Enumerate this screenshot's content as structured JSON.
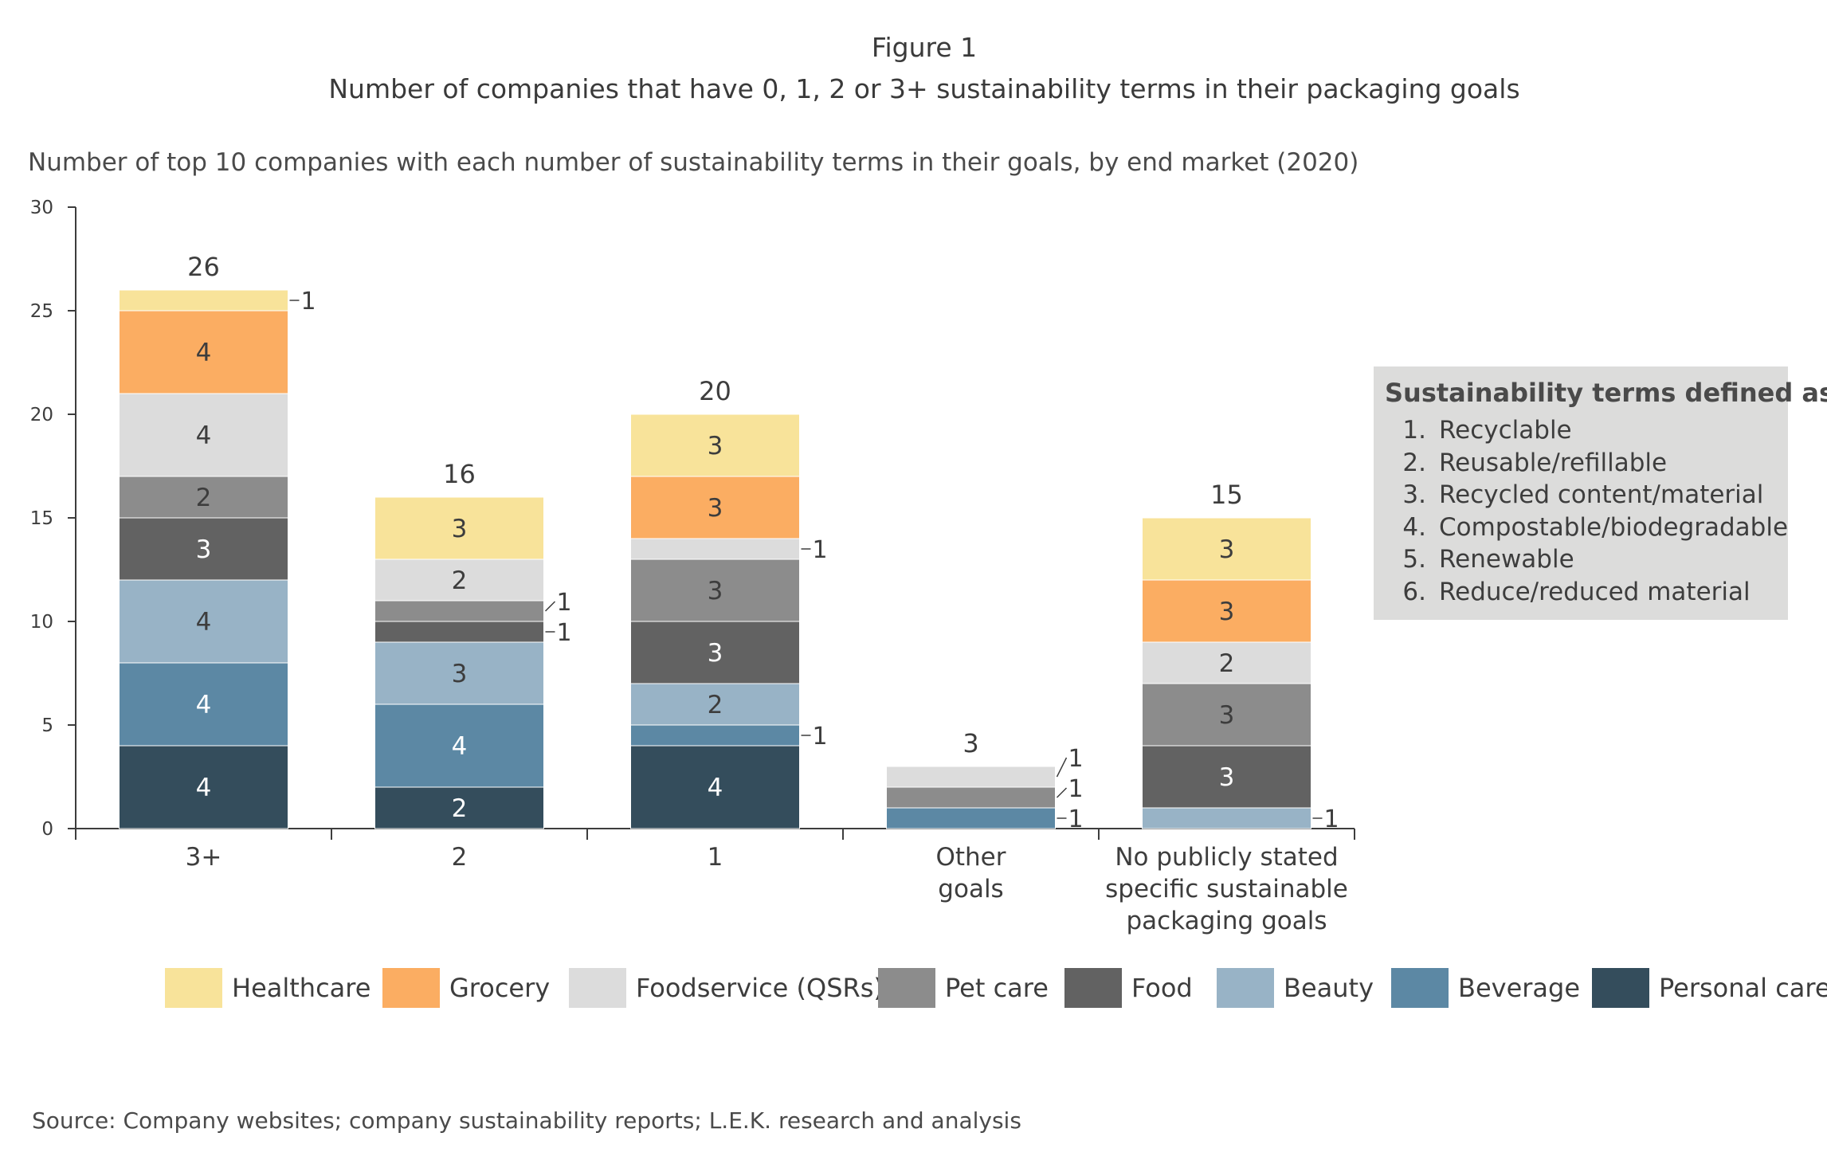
{
  "figure_label": "Figure 1",
  "title": "Number of companies that have 0, 1, 2 or 3+ sustainability terms in their packaging goals",
  "source": "Source: Company websites; company sustainability reports; L.E.K. research and analysis",
  "terms_box": {
    "title": "Sustainability terms defined as:",
    "items": [
      {
        "num": "1.",
        "label": "Recyclable"
      },
      {
        "num": "2.",
        "label": "Reusable/refillable"
      },
      {
        "num": "3.",
        "label": "Recycled content/material"
      },
      {
        "num": "4.",
        "label": "Compostable/biodegradable"
      },
      {
        "num": "5.",
        "label": "Renewable"
      },
      {
        "num": "6.",
        "label": "Reduce/reduced material"
      }
    ]
  },
  "chart_data": {
    "type": "bar",
    "stacked": true,
    "title": "Number of top 10 companies with each number of sustainability terms in their goals, by end market (2020)",
    "categories": [
      [
        "3+"
      ],
      [
        "2"
      ],
      [
        "1"
      ],
      [
        "Other",
        "goals"
      ],
      [
        "No publicly stated",
        "specific sustainable",
        "packaging goals"
      ]
    ],
    "ylim": [
      0,
      30
    ],
    "yticks": [
      0,
      5,
      10,
      15,
      20,
      25,
      30
    ],
    "totals": [
      26,
      16,
      20,
      3,
      15
    ],
    "legend_position": "bottom",
    "series": [
      {
        "name": "Personal care",
        "color": "#344d5c",
        "values": [
          4,
          2,
          4,
          0,
          0
        ]
      },
      {
        "name": "Beverage",
        "color": "#5c88a4",
        "values": [
          4,
          4,
          1,
          1,
          0
        ]
      },
      {
        "name": "Beauty",
        "color": "#98b3c6",
        "values": [
          4,
          3,
          2,
          0,
          1
        ]
      },
      {
        "name": "Food",
        "color": "#626262",
        "values": [
          3,
          1,
          3,
          0,
          3
        ]
      },
      {
        "name": "Pet care",
        "color": "#8c8c8c",
        "values": [
          2,
          1,
          3,
          1,
          3
        ]
      },
      {
        "name": "Foodservice (QSRs)",
        "color": "#dcdcdc",
        "values": [
          4,
          2,
          1,
          1,
          2
        ]
      },
      {
        "name": "Grocery",
        "color": "#fbad62",
        "values": [
          4,
          0,
          3,
          0,
          3
        ]
      },
      {
        "name": "Healthcare",
        "color": "#f8e39a",
        "values": [
          1,
          3,
          3,
          0,
          3
        ]
      }
    ],
    "legend_order": [
      "Healthcare",
      "Grocery",
      "Foodservice (QSRs)",
      "Pet care",
      "Food",
      "Beauty",
      "Beverage",
      "Personal care"
    ]
  }
}
